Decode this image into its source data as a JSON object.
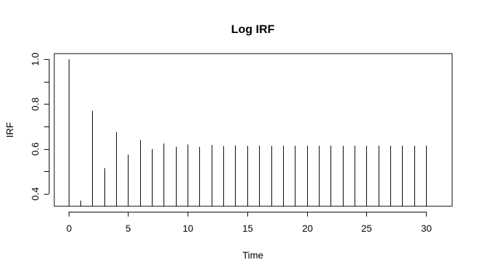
{
  "chart_data": {
    "type": "bar",
    "title": "Log IRF",
    "xlabel": "Time",
    "ylabel": "IRF",
    "x": [
      0,
      1,
      2,
      3,
      4,
      5,
      6,
      7,
      8,
      9,
      10,
      11,
      12,
      13,
      14,
      15,
      16,
      17,
      18,
      19,
      20,
      21,
      22,
      23,
      24,
      25,
      26,
      27,
      28,
      29,
      30
    ],
    "values": [
      1.0,
      0.37,
      0.77,
      0.515,
      0.675,
      0.575,
      0.64,
      0.6,
      0.625,
      0.61,
      0.62,
      0.61,
      0.618,
      0.613,
      0.616,
      0.614,
      0.615,
      0.614,
      0.615,
      0.614,
      0.615,
      0.614,
      0.615,
      0.614,
      0.615,
      0.614,
      0.615,
      0.614,
      0.615,
      0.614,
      0.615
    ],
    "xlim": [
      -1.2,
      32.2
    ],
    "ylim": [
      0.345,
      1.025
    ],
    "xticks": [
      0,
      5,
      10,
      15,
      20,
      25,
      30
    ],
    "xtick_labels": [
      "0",
      "5",
      "10",
      "15",
      "20",
      "25",
      "30"
    ],
    "yticks": [
      0.4,
      0.6,
      0.8,
      1.0
    ],
    "ytick_labels": [
      "0.4",
      "0.6",
      "0.8",
      "1.0"
    ],
    "yticks_minor": [
      0.5,
      0.7,
      0.9
    ],
    "grid": false,
    "bar_color": "#000000"
  }
}
